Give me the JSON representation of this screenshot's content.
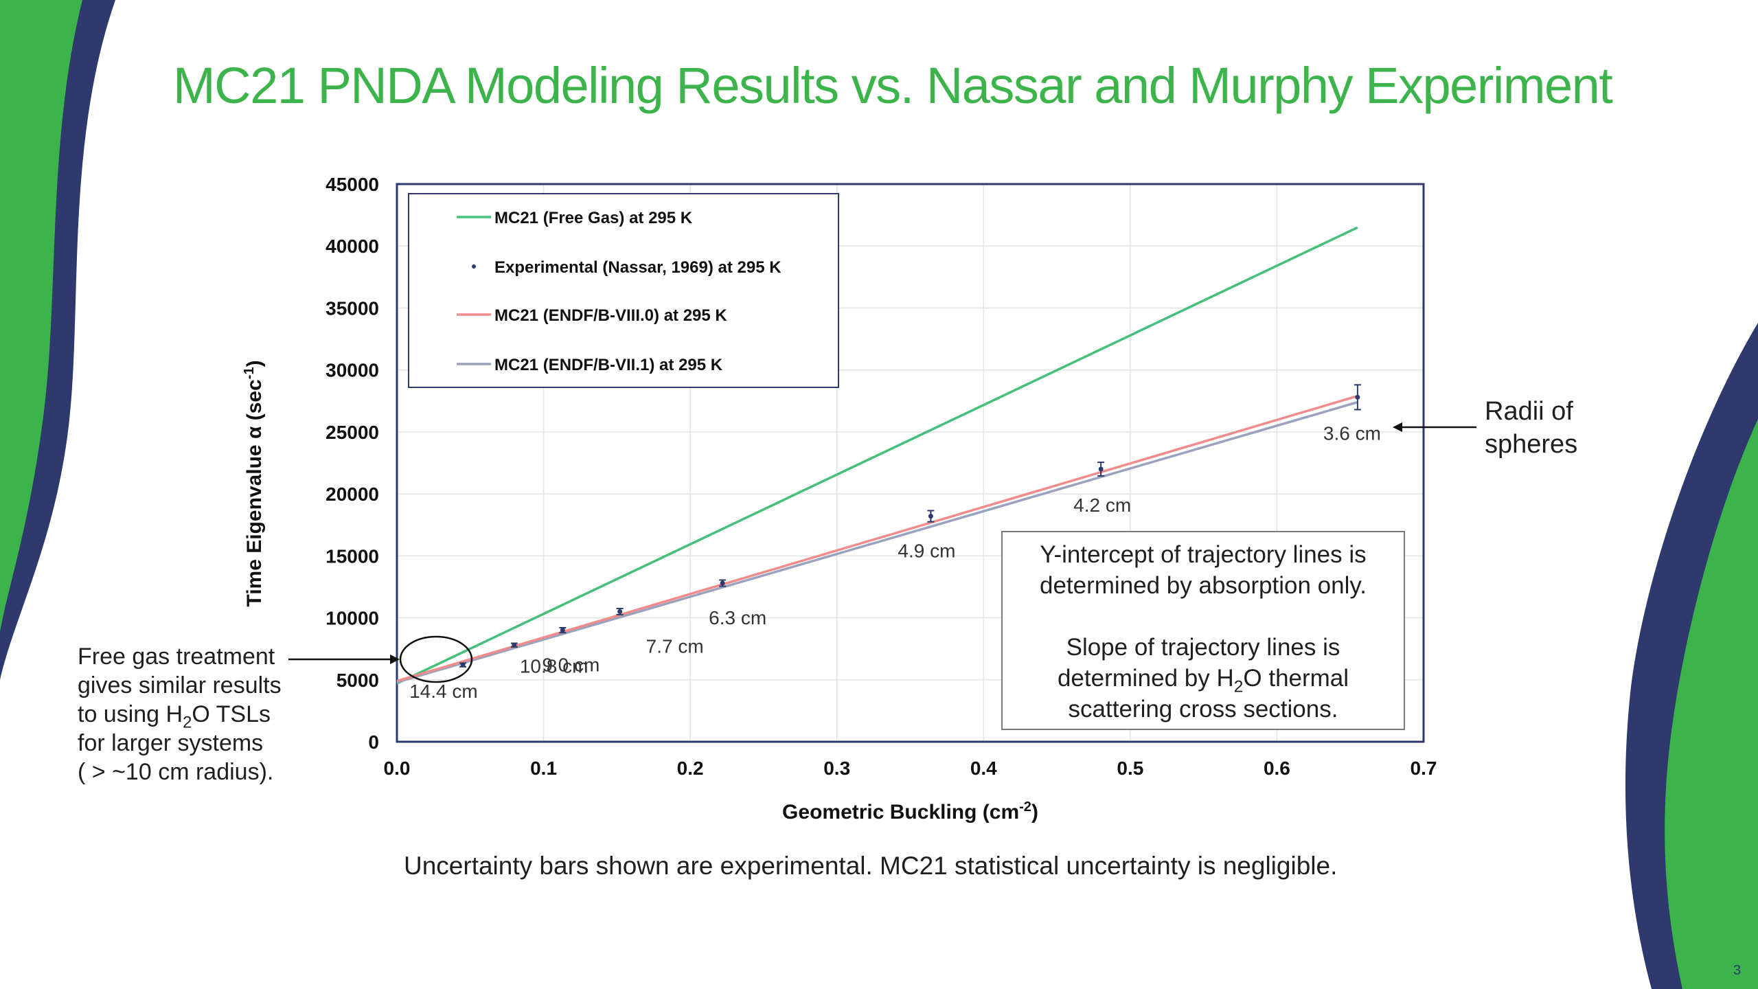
{
  "title": "MC21 PNDA Modeling Results vs. Nassar and Murphy Experiment",
  "colors": {
    "accent_green": "#3cb44b",
    "navy": "#2e3a6e",
    "free_gas": "#45c07a",
    "endf8": "#f08c8c",
    "endf71": "#9aa3bd",
    "experimental": "#2e3a6e"
  },
  "notes": {
    "left": {
      "line1": "Free gas treatment",
      "line2": "gives similar results",
      "line3_pre": "to using H",
      "line3_sub": "2",
      "line3_post": "O TSLs",
      "line4": "for larger systems",
      "line5": "( > ~10 cm radius)."
    },
    "radii": {
      "line1": "Radii of",
      "line2": "spheres"
    },
    "box": {
      "line1": "Y-intercept of trajectory lines is",
      "line2": "determined by absorption only.",
      "line3": "Slope of trajectory lines is",
      "line4_pre": "determined by H",
      "line4_sub": "2",
      "line4_post": "O thermal",
      "line5": "scattering cross sections."
    },
    "bottom": "Uncertainty bars shown are experimental.  MC21 statistical uncertainty is negligible."
  },
  "page_number": "3",
  "chart_data": {
    "type": "line",
    "xlabel": "Geometric Buckling (cm-2)",
    "ylabel": "Time Eigenvalue α (sec-1)",
    "xlim": [
      0,
      0.7
    ],
    "ylim": [
      0,
      45000
    ],
    "x_ticks": [
      "0.0",
      "0.1",
      "0.2",
      "0.3",
      "0.4",
      "0.5",
      "0.6",
      "0.7"
    ],
    "y_ticks": [
      "0",
      "5000",
      "10000",
      "15000",
      "20000",
      "25000",
      "30000",
      "35000",
      "40000",
      "45000"
    ],
    "grid": true,
    "legend_position": "top-left",
    "series": [
      {
        "name": "MC21 (Free Gas) at 295 K",
        "kind": "line",
        "x": [
          0.0,
          0.655
        ],
        "y": [
          4700,
          41500
        ]
      },
      {
        "name": "Experimental (Nassar, 1969) at 295 K",
        "kind": "points",
        "x": [
          0.045,
          0.08,
          0.113,
          0.152,
          0.222,
          0.364,
          0.48,
          0.655
        ],
        "y": [
          6200,
          7800,
          9000,
          10500,
          12800,
          18200,
          22000,
          27800
        ],
        "err": [
          150,
          150,
          200,
          250,
          250,
          450,
          550,
          1000
        ]
      },
      {
        "name": "MC21 (ENDF/B-VIII.0) at 295 K",
        "kind": "line",
        "x": [
          0.0,
          0.655
        ],
        "y": [
          4900,
          27900
        ]
      },
      {
        "name": "MC21 (ENDF/B-VII.1) at 295 K",
        "kind": "line",
        "x": [
          0.0,
          0.655
        ],
        "y": [
          4800,
          27400
        ]
      }
    ],
    "annotations": [
      {
        "text": "14.4 cm",
        "x": 0.045,
        "y": 6200
      },
      {
        "text": "10.8 cm",
        "x": 0.08,
        "y": 7800
      },
      {
        "text": "9.0 cm",
        "x": 0.113,
        "y": 9000
      },
      {
        "text": "7.7 cm",
        "x": 0.152,
        "y": 10500
      },
      {
        "text": "6.3 cm",
        "x": 0.222,
        "y": 12800
      },
      {
        "text": "4.9 cm",
        "x": 0.364,
        "y": 18200
      },
      {
        "text": "4.2 cm",
        "x": 0.48,
        "y": 22000
      },
      {
        "text": "3.6 cm",
        "x": 0.655,
        "y": 27800
      }
    ]
  }
}
